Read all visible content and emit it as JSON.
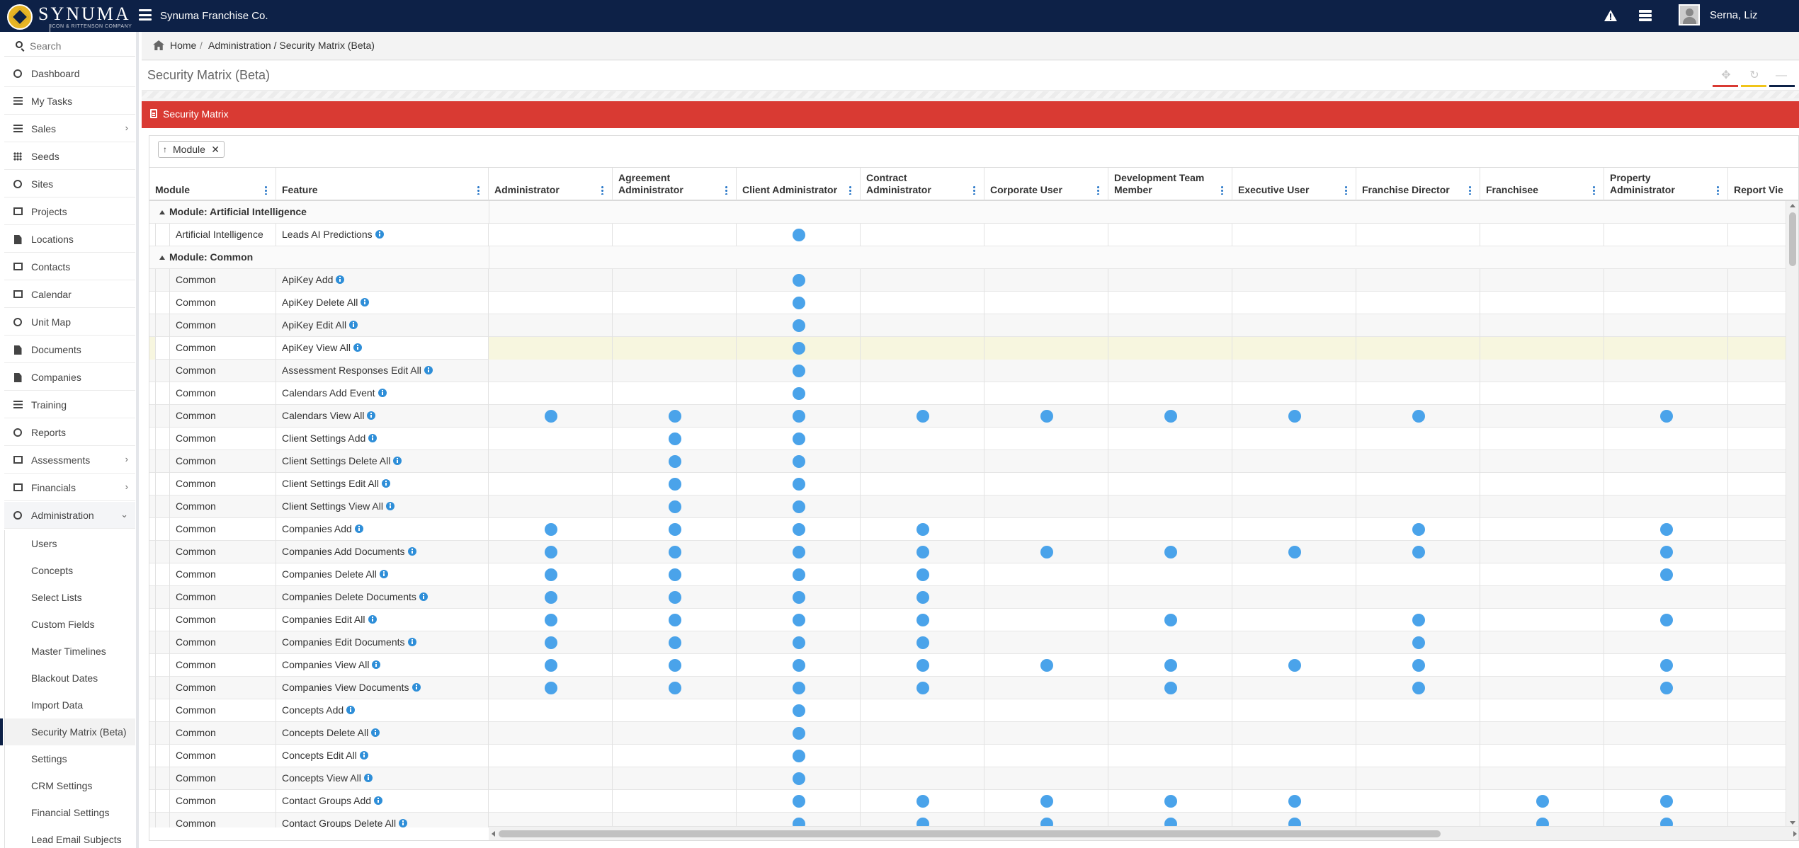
{
  "app": {
    "logo_text": "SYNUMA",
    "logo_subtitle": "ICON & RITTENSON COMPANY",
    "company": "Synuma Franchise Co.",
    "user": "Serna, Liz"
  },
  "sidebar": {
    "search_placeholder": "Search",
    "items": [
      {
        "label": "Dashboard",
        "icon": "dashboard-icon"
      },
      {
        "label": "My Tasks",
        "icon": "tasks-icon"
      },
      {
        "label": "Sales",
        "icon": "chart-line-icon",
        "chevron": "›"
      },
      {
        "label": "Seeds",
        "icon": "grid-icon"
      },
      {
        "label": "Sites",
        "icon": "leaf-icon"
      },
      {
        "label": "Projects",
        "icon": "binoculars-icon"
      },
      {
        "label": "Locations",
        "icon": "building-icon"
      },
      {
        "label": "Contacts",
        "icon": "address-card-icon"
      },
      {
        "label": "Calendar",
        "icon": "calendar-icon"
      },
      {
        "label": "Unit Map",
        "icon": "globe-icon"
      },
      {
        "label": "Documents",
        "icon": "file-icon"
      },
      {
        "label": "Companies",
        "icon": "building-icon"
      },
      {
        "label": "Training",
        "icon": "graduation-cap-icon"
      },
      {
        "label": "Reports",
        "icon": "pie-chart-icon"
      },
      {
        "label": "Assessments",
        "icon": "check-square-icon",
        "chevron": "›"
      },
      {
        "label": "Financials",
        "icon": "money-icon",
        "chevron": "›"
      },
      {
        "label": "Administration",
        "icon": "cogs-icon",
        "chevron": "⌄"
      }
    ],
    "admin_items": [
      "Users",
      "Concepts",
      "Select Lists",
      "Custom Fields",
      "Master Timelines",
      "Blackout Dates",
      "Import Data",
      "Security Matrix (Beta)",
      "Settings",
      "CRM Settings",
      "Financial Settings",
      "Lead Email Subjects"
    ],
    "active_admin_item": "Security Matrix (Beta)"
  },
  "breadcrumb": {
    "home": "Home",
    "separator": "/",
    "path": "Administration / Security Matrix (Beta)"
  },
  "page": {
    "title": "Security Matrix (Beta)",
    "toolbar_colors": [
      "#d93a33",
      "#f0c419",
      "#0d2147"
    ]
  },
  "panel": {
    "title": "Security Matrix",
    "header_color": "#d93a33",
    "group_chip": {
      "arrow": "↑",
      "label": "Module",
      "close": "✕"
    }
  },
  "grid": {
    "columns": [
      {
        "label": "Module"
      },
      {
        "label": "Feature"
      },
      {
        "label": "Administrator"
      },
      {
        "label": "Agreement Administrator"
      },
      {
        "label": "Client Administrator"
      },
      {
        "label": "Contract Administrator"
      },
      {
        "label": "Corporate User"
      },
      {
        "label": "Development Team Member"
      },
      {
        "label": "Executive User"
      },
      {
        "label": "Franchise Director"
      },
      {
        "label": "Franchisee"
      },
      {
        "label": "Property Administrator"
      },
      {
        "label": "Report Vie"
      }
    ],
    "rows": [
      {
        "group": "Module: Artificial Intelligence"
      },
      {
        "module": "Artificial Intelligence",
        "feature": "Leads AI Predictions",
        "perms": [
          0,
          0,
          1,
          0,
          0,
          0,
          0,
          0,
          0,
          0,
          0
        ]
      },
      {
        "group": "Module: Common"
      },
      {
        "module": "Common",
        "feature": "ApiKey Add",
        "perms": [
          0,
          0,
          1,
          0,
          0,
          0,
          0,
          0,
          0,
          0,
          0
        ]
      },
      {
        "module": "Common",
        "feature": "ApiKey Delete All",
        "perms": [
          0,
          0,
          1,
          0,
          0,
          0,
          0,
          0,
          0,
          0,
          0
        ]
      },
      {
        "module": "Common",
        "feature": "ApiKey Edit All",
        "perms": [
          0,
          0,
          1,
          0,
          0,
          0,
          0,
          0,
          0,
          0,
          0
        ]
      },
      {
        "module": "Common",
        "feature": "ApiKey View All",
        "perms": [
          0,
          0,
          1,
          0,
          0,
          0,
          0,
          0,
          0,
          0,
          0
        ],
        "highlight": true
      },
      {
        "module": "Common",
        "feature": "Assessment Responses Edit All",
        "perms": [
          0,
          0,
          1,
          0,
          0,
          0,
          0,
          0,
          0,
          0,
          0
        ]
      },
      {
        "module": "Common",
        "feature": "Calendars Add Event",
        "perms": [
          0,
          0,
          1,
          0,
          0,
          0,
          0,
          0,
          0,
          0,
          0
        ]
      },
      {
        "module": "Common",
        "feature": "Calendars View All",
        "perms": [
          1,
          1,
          1,
          1,
          1,
          1,
          1,
          1,
          0,
          1,
          0
        ]
      },
      {
        "module": "Common",
        "feature": "Client Settings Add",
        "perms": [
          0,
          1,
          1,
          0,
          0,
          0,
          0,
          0,
          0,
          0,
          0
        ]
      },
      {
        "module": "Common",
        "feature": "Client Settings Delete All",
        "perms": [
          0,
          1,
          1,
          0,
          0,
          0,
          0,
          0,
          0,
          0,
          0
        ]
      },
      {
        "module": "Common",
        "feature": "Client Settings Edit All",
        "perms": [
          0,
          1,
          1,
          0,
          0,
          0,
          0,
          0,
          0,
          0,
          0
        ]
      },
      {
        "module": "Common",
        "feature": "Client Settings View All",
        "perms": [
          0,
          1,
          1,
          0,
          0,
          0,
          0,
          0,
          0,
          0,
          0
        ]
      },
      {
        "module": "Common",
        "feature": "Companies Add",
        "perms": [
          1,
          1,
          1,
          1,
          0,
          0,
          0,
          1,
          0,
          1,
          0
        ]
      },
      {
        "module": "Common",
        "feature": "Companies Add Documents",
        "perms": [
          1,
          1,
          1,
          1,
          1,
          1,
          1,
          1,
          0,
          1,
          0
        ]
      },
      {
        "module": "Common",
        "feature": "Companies Delete All",
        "perms": [
          1,
          1,
          1,
          1,
          0,
          0,
          0,
          0,
          0,
          1,
          0
        ]
      },
      {
        "module": "Common",
        "feature": "Companies Delete Documents",
        "perms": [
          1,
          1,
          1,
          1,
          0,
          0,
          0,
          0,
          0,
          0,
          0
        ]
      },
      {
        "module": "Common",
        "feature": "Companies Edit All",
        "perms": [
          1,
          1,
          1,
          1,
          0,
          1,
          0,
          1,
          0,
          1,
          0
        ]
      },
      {
        "module": "Common",
        "feature": "Companies Edit Documents",
        "perms": [
          1,
          1,
          1,
          1,
          0,
          0,
          0,
          1,
          0,
          0,
          0
        ]
      },
      {
        "module": "Common",
        "feature": "Companies View All",
        "perms": [
          1,
          1,
          1,
          1,
          1,
          1,
          1,
          1,
          0,
          1,
          0
        ]
      },
      {
        "module": "Common",
        "feature": "Companies View Documents",
        "perms": [
          1,
          1,
          1,
          1,
          0,
          1,
          0,
          1,
          0,
          1,
          0
        ]
      },
      {
        "module": "Common",
        "feature": "Concepts Add",
        "perms": [
          0,
          0,
          1,
          0,
          0,
          0,
          0,
          0,
          0,
          0,
          0
        ]
      },
      {
        "module": "Common",
        "feature": "Concepts Delete All",
        "perms": [
          0,
          0,
          1,
          0,
          0,
          0,
          0,
          0,
          0,
          0,
          0
        ]
      },
      {
        "module": "Common",
        "feature": "Concepts Edit All",
        "perms": [
          0,
          0,
          1,
          0,
          0,
          0,
          0,
          0,
          0,
          0,
          0
        ]
      },
      {
        "module": "Common",
        "feature": "Concepts View All",
        "perms": [
          0,
          0,
          1,
          0,
          0,
          0,
          0,
          0,
          0,
          0,
          0
        ]
      },
      {
        "module": "Common",
        "feature": "Contact Groups Add",
        "perms": [
          0,
          0,
          1,
          1,
          1,
          1,
          1,
          0,
          1,
          1,
          0
        ]
      },
      {
        "module": "Common",
        "feature": "Contact Groups Delete All",
        "perms": [
          0,
          0,
          1,
          1,
          1,
          1,
          1,
          0,
          1,
          1,
          0
        ]
      }
    ]
  }
}
